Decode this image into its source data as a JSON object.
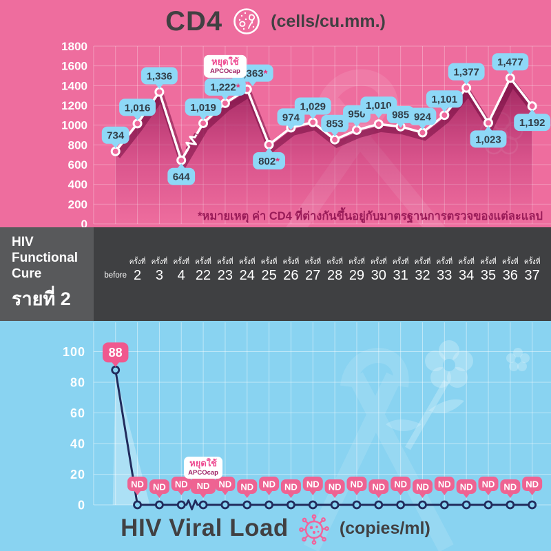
{
  "header": {
    "title": "CD4",
    "unit": "(cells/cu.mm.)",
    "icon": "cd4-cell-icon"
  },
  "band": {
    "title_lines": [
      "HIV",
      "Functional",
      "Cure"
    ],
    "subtitle": "รายที่ 2",
    "x_labels": [
      {
        "prefix": "",
        "n": "before"
      },
      {
        "prefix": "ครั้งที่",
        "n": "2"
      },
      {
        "prefix": "ครั้งที่",
        "n": "3"
      },
      {
        "prefix": "ครั้งที่",
        "n": "4"
      },
      {
        "prefix": "ครั้งที่",
        "n": "22"
      },
      {
        "prefix": "ครั้งที่",
        "n": "23"
      },
      {
        "prefix": "ครั้งที่",
        "n": "24"
      },
      {
        "prefix": "ครั้งที่",
        "n": "25"
      },
      {
        "prefix": "ครั้งที่",
        "n": "26"
      },
      {
        "prefix": "ครั้งที่",
        "n": "27"
      },
      {
        "prefix": "ครั้งที่",
        "n": "28"
      },
      {
        "prefix": "ครั้งที่",
        "n": "29"
      },
      {
        "prefix": "ครั้งที่",
        "n": "30"
      },
      {
        "prefix": "ครั้งที่",
        "n": "31"
      },
      {
        "prefix": "ครั้งที่",
        "n": "32"
      },
      {
        "prefix": "ครั้งที่",
        "n": "33"
      },
      {
        "prefix": "ครั้งที่",
        "n": "34"
      },
      {
        "prefix": "ครั้งที่",
        "n": "35"
      },
      {
        "prefix": "ครั้งที่",
        "n": "36"
      },
      {
        "prefix": "ครั้งที่",
        "n": "37"
      }
    ]
  },
  "footer": {
    "title": "HIV Viral Load",
    "unit": "(copies/ml)",
    "icon": "virus-icon"
  },
  "colors": {
    "pink_bg": "#ee6d9e",
    "blue_bg": "#89d3f1",
    "band_bg": "#3f4042",
    "band_left_bg": "#58595b",
    "bubble_blue": "#8ed8f7",
    "bubble_text": "#323e48",
    "asterisk": "#e8357a",
    "nd_pink": "#ee6392",
    "navy_line": "#212b5c",
    "white_line": "#ffffff",
    "footnote_color": "#9a1c59",
    "annotation_pink": "#ee4d92",
    "annotation_magenta": "#9e2064",
    "title_color": "#414042",
    "area_shadow": "#8c1750"
  },
  "chart_data": [
    {
      "id": "cd4",
      "type": "line",
      "title": "CD4",
      "ylabel_unit": "cells/cu.mm.",
      "categories": [
        "before",
        "ครั้งที่ 2",
        "ครั้งที่ 3",
        "ครั้งที่ 4",
        "ครั้งที่ 22",
        "ครั้งที่ 23",
        "ครั้งที่ 24",
        "ครั้งที่ 25",
        "ครั้งที่ 26",
        "ครั้งที่ 27",
        "ครั้งที่ 28",
        "ครั้งที่ 29",
        "ครั้งที่ 30",
        "ครั้งที่ 31",
        "ครั้งที่ 32",
        "ครั้งที่ 33",
        "ครั้งที่ 34",
        "ครั้งที่ 35",
        "ครั้งที่ 36",
        "ครั้งที่ 37"
      ],
      "values": [
        734,
        1016,
        1336,
        644,
        1019,
        1222,
        1363,
        802,
        974,
        1029,
        853,
        950,
        1010,
        985,
        924,
        1101,
        1377,
        1023,
        1477,
        1192
      ],
      "labels": [
        "734",
        "1,016",
        "1,336",
        "644",
        "1,019",
        "1,222*",
        "1,363*",
        "802*",
        "974",
        "1,029",
        "853",
        "950",
        "1,010",
        "985",
        "924",
        "1,101",
        "1,377",
        "1,023",
        "1,477",
        "1,192"
      ],
      "label_below_indices": [
        3,
        7,
        17,
        19
      ],
      "label_dx": {
        "6": 8
      },
      "label_dy": {
        "8": 8,
        "12": -4,
        "13": 6
      },
      "ylim": [
        0,
        1800
      ],
      "ytick_step": 200,
      "grid": true,
      "axis_break_between": [
        3,
        4
      ],
      "annotation": {
        "line1": "หยุดใช้",
        "line2": "APCOcap",
        "index": 5
      },
      "footnote": "*หมายเหตุ ค่า CD4 ที่ต่างกันขึ้นอยู่กับมาตรฐานการตรวจของแต่ละแลป"
    },
    {
      "id": "viral_load",
      "type": "line",
      "title": "HIV Viral Load",
      "ylabel_unit": "copies/ml",
      "categories": [
        "before",
        "ครั้งที่ 2",
        "ครั้งที่ 3",
        "ครั้งที่ 4",
        "ครั้งที่ 22",
        "ครั้งที่ 23",
        "ครั้งที่ 24",
        "ครั้งที่ 25",
        "ครั้งที่ 26",
        "ครั้งที่ 27",
        "ครั้งที่ 28",
        "ครั้งที่ 29",
        "ครั้งที่ 30",
        "ครั้งที่ 31",
        "ครั้งที่ 32",
        "ครั้งที่ 33",
        "ครั้งที่ 34",
        "ครั้งที่ 35",
        "ครั้งที่ 36",
        "ครั้งที่ 37"
      ],
      "values": [
        88,
        0,
        0,
        0,
        0,
        0,
        0,
        0,
        0,
        0,
        0,
        0,
        0,
        0,
        0,
        0,
        0,
        0,
        0,
        0
      ],
      "labels": [
        "88",
        "ND",
        "ND",
        "ND",
        "ND",
        "ND",
        "ND",
        "ND",
        "ND",
        "ND",
        "ND",
        "ND",
        "ND",
        "ND",
        "ND",
        "ND",
        "ND",
        "ND",
        "ND",
        "ND"
      ],
      "ylim": [
        0,
        100
      ],
      "ytick_step": 20,
      "grid": true,
      "axis_break_between": [
        3,
        4
      ],
      "annotation": {
        "line1": "หยุดใช้",
        "line2": "APCOcap",
        "index": 4
      }
    }
  ]
}
